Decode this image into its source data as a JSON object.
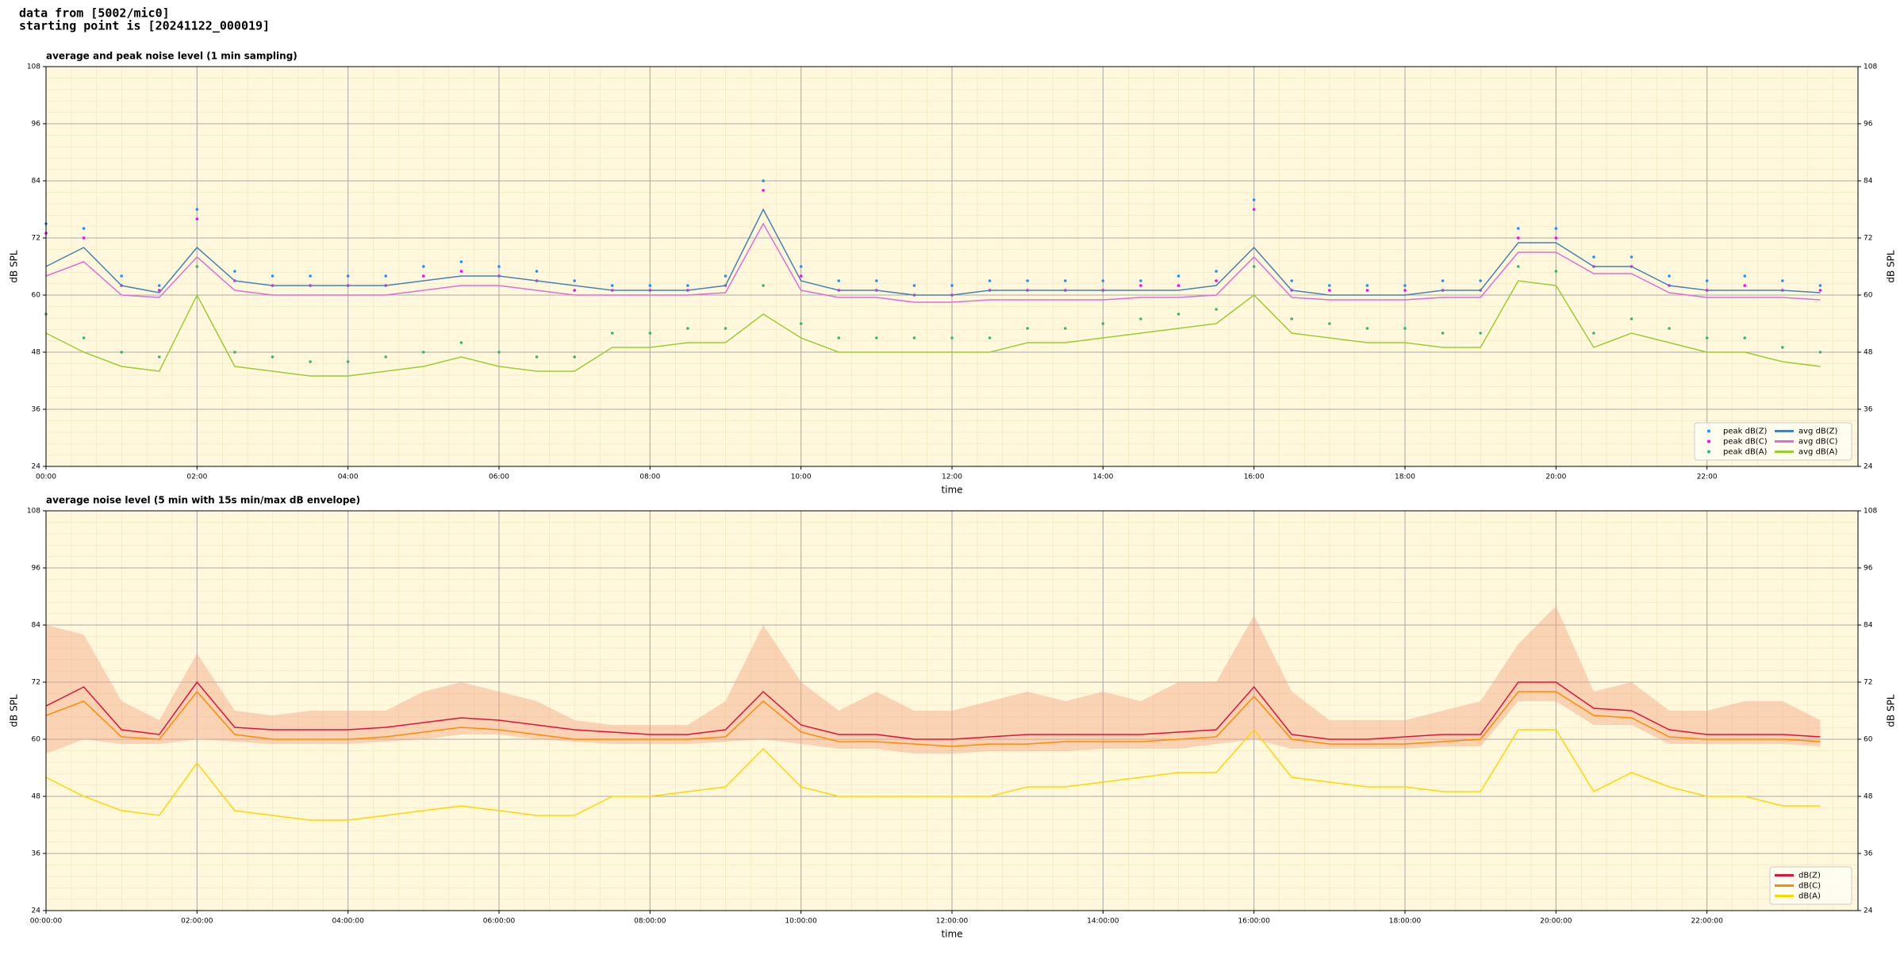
{
  "header": {
    "line1": "data from [5002/mic0]",
    "line2": "starting point is [20241122_000019]"
  },
  "chart_data": [
    {
      "type": "line",
      "title": "average and peak noise level (1 min sampling)",
      "xlabel": "time",
      "ylabel": "dB SPL",
      "xlim": [
        0,
        24
      ],
      "ylim": [
        24,
        108
      ],
      "xticks": [
        {
          "value": 0,
          "label": "00:00"
        },
        {
          "value": 2,
          "label": "02:00"
        },
        {
          "value": 4,
          "label": "04:00"
        },
        {
          "value": 6,
          "label": "06:00"
        },
        {
          "value": 8,
          "label": "08:00"
        },
        {
          "value": 10,
          "label": "10:00"
        },
        {
          "value": 12,
          "label": "12:00"
        },
        {
          "value": 14,
          "label": "14:00"
        },
        {
          "value": 16,
          "label": "16:00"
        },
        {
          "value": 18,
          "label": "18:00"
        },
        {
          "value": 20,
          "label": "20:00"
        },
        {
          "value": 22,
          "label": "22:00"
        }
      ],
      "yticks": [
        24,
        36,
        48,
        60,
        72,
        84,
        96,
        108
      ],
      "grid": true,
      "legend": "lower right",
      "legend_columns": 2,
      "x": [
        0,
        0.5,
        1,
        1.5,
        2,
        2.5,
        3,
        3.5,
        4,
        4.5,
        5,
        5.5,
        6,
        6.5,
        7,
        7.5,
        8,
        8.5,
        9,
        9.5,
        10,
        10.5,
        11,
        11.5,
        12,
        12.5,
        13,
        13.5,
        14,
        14.5,
        15,
        15.5,
        16,
        16.5,
        17,
        17.5,
        18,
        18.5,
        19,
        19.5,
        20,
        20.5,
        21,
        21.5,
        22,
        22.5,
        23,
        23.5
      ],
      "series": [
        {
          "name": "peak dB(Z)",
          "style": "scatter",
          "color": "#1e90ff",
          "values": [
            75,
            74,
            64,
            62,
            78,
            65,
            64,
            64,
            64,
            64,
            66,
            67,
            66,
            65,
            63,
            62,
            62,
            62,
            64,
            84,
            66,
            63,
            63,
            62,
            62,
            63,
            63,
            63,
            63,
            63,
            64,
            65,
            80,
            63,
            62,
            62,
            62,
            63,
            63,
            74,
            74,
            68,
            68,
            64,
            63,
            64,
            63,
            62
          ]
        },
        {
          "name": "peak dB(C)",
          "style": "scatter",
          "color": "#ff00ff",
          "values": [
            73,
            72,
            62,
            61,
            76,
            63,
            62,
            62,
            62,
            62,
            64,
            65,
            64,
            63,
            61,
            61,
            61,
            61,
            62,
            82,
            64,
            61,
            61,
            60,
            60,
            61,
            61,
            61,
            61,
            62,
            62,
            63,
            78,
            61,
            61,
            61,
            61,
            61,
            61,
            72,
            72,
            66,
            66,
            62,
            61,
            62,
            61,
            61
          ]
        },
        {
          "name": "peak dB(A)",
          "style": "scatter",
          "color": "#3cb371",
          "values": [
            56,
            51,
            48,
            47,
            66,
            48,
            47,
            46,
            46,
            47,
            48,
            50,
            48,
            47,
            47,
            52,
            52,
            53,
            53,
            62,
            54,
            51,
            51,
            51,
            51,
            51,
            53,
            53,
            54,
            55,
            56,
            57,
            66,
            55,
            54,
            53,
            53,
            52,
            52,
            66,
            65,
            52,
            55,
            53,
            51,
            51,
            49,
            48
          ]
        },
        {
          "name": "avg dB(Z)",
          "style": "line",
          "color": "#4682b4",
          "values": [
            66,
            70,
            62,
            60.5,
            70,
            63,
            62,
            62,
            62,
            62,
            63,
            64,
            64,
            63,
            62,
            61,
            61,
            61,
            62,
            78,
            63,
            61,
            61,
            60,
            60,
            61,
            61,
            61,
            61,
            61,
            61,
            62,
            70,
            61,
            60,
            60,
            60,
            61,
            61,
            71,
            71,
            66,
            66,
            62,
            61,
            61,
            61,
            60.5
          ]
        },
        {
          "name": "avg dB(C)",
          "style": "line",
          "color": "#da70d6",
          "values": [
            64,
            67,
            60,
            59.5,
            68,
            61,
            60,
            60,
            60,
            60,
            61,
            62,
            62,
            61,
            60,
            60,
            60,
            60,
            60.5,
            75,
            61,
            59.5,
            59.5,
            58.5,
            58.5,
            59,
            59,
            59,
            59,
            59.5,
            59.5,
            60,
            68,
            59.5,
            59,
            59,
            59,
            59.5,
            59.5,
            69,
            69,
            64.5,
            64.5,
            60.5,
            59.5,
            59.5,
            59.5,
            59
          ]
        },
        {
          "name": "avg dB(A)",
          "style": "line",
          "color": "#9acd32",
          "values": [
            52,
            48,
            45,
            44,
            60,
            45,
            44,
            43,
            43,
            44,
            45,
            47,
            45,
            44,
            44,
            49,
            49,
            50,
            50,
            56,
            51,
            48,
            48,
            48,
            48,
            48,
            50,
            50,
            51,
            52,
            53,
            54,
            60,
            52,
            51,
            50,
            50,
            49,
            49,
            63,
            62,
            49,
            52,
            50,
            48,
            48,
            46,
            45
          ]
        }
      ]
    },
    {
      "type": "line",
      "title": "average noise level (5 min with 15s min/max dB envelope)",
      "xlabel": "time",
      "ylabel": "dB SPL",
      "xlim": [
        0,
        24
      ],
      "ylim": [
        24,
        108
      ],
      "xticks": [
        {
          "value": 0,
          "label": "00:00:00"
        },
        {
          "value": 2,
          "label": "02:00:00"
        },
        {
          "value": 4,
          "label": "04:00:00"
        },
        {
          "value": 6,
          "label": "06:00:00"
        },
        {
          "value": 8,
          "label": "08:00:00"
        },
        {
          "value": 10,
          "label": "10:00:00"
        },
        {
          "value": 12,
          "label": "12:00:00"
        },
        {
          "value": 14,
          "label": "14:00:00"
        },
        {
          "value": 16,
          "label": "16:00:00"
        },
        {
          "value": 18,
          "label": "18:00:00"
        },
        {
          "value": 20,
          "label": "20:00:00"
        },
        {
          "value": 22,
          "label": "22:00:00"
        }
      ],
      "yticks": [
        24,
        36,
        48,
        60,
        72,
        84,
        96,
        108
      ],
      "grid": true,
      "legend": "lower right",
      "legend_columns": 1,
      "x": [
        0,
        0.5,
        1,
        1.5,
        2,
        2.5,
        3,
        3.5,
        4,
        4.5,
        5,
        5.5,
        6,
        6.5,
        7,
        7.5,
        8,
        8.5,
        9,
        9.5,
        10,
        10.5,
        11,
        11.5,
        12,
        12.5,
        13,
        13.5,
        14,
        14.5,
        15,
        15.5,
        16,
        16.5,
        17,
        17.5,
        18,
        18.5,
        19,
        19.5,
        20,
        20.5,
        21,
        21.5,
        22,
        22.5,
        23,
        23.5
      ],
      "envelope": {
        "color": "#f4a582",
        "max": [
          84,
          82,
          68,
          64,
          78,
          66,
          65,
          66,
          66,
          66,
          70,
          72,
          70,
          68,
          64,
          63,
          63,
          63,
          68,
          84,
          72,
          66,
          70,
          66,
          66,
          68,
          70,
          68,
          70,
          68,
          72,
          72,
          86,
          70,
          64,
          64,
          64,
          66,
          68,
          80,
          88,
          70,
          72,
          66,
          66,
          68,
          68,
          64
        ],
        "min": [
          57,
          60,
          59,
          59,
          60,
          59.5,
          59,
          59,
          59,
          59.5,
          60,
          61,
          61,
          60,
          59.5,
          59,
          59,
          59,
          59.5,
          60,
          59,
          58,
          58,
          57,
          57,
          57.5,
          57.5,
          57.5,
          58,
          58,
          58,
          59,
          60,
          58,
          58,
          58,
          58,
          58.5,
          58.5,
          68,
          68,
          63,
          63,
          59,
          59,
          59,
          59,
          58.5
        ]
      },
      "series": [
        {
          "name": "dB(Z)",
          "style": "line",
          "color": "#dc143c",
          "values": [
            67,
            71,
            62,
            61,
            72,
            62.5,
            62,
            62,
            62,
            62.5,
            63.5,
            64.5,
            64,
            63,
            62,
            61.5,
            61,
            61,
            62,
            70,
            63,
            61,
            61,
            60,
            60,
            60.5,
            61,
            61,
            61,
            61,
            61.5,
            62,
            71,
            61,
            60,
            60,
            60.5,
            61,
            61,
            72,
            72,
            66.5,
            66,
            62,
            61,
            61,
            61,
            60.5
          ]
        },
        {
          "name": "dB(C)",
          "style": "line",
          "color": "#ff8c00",
          "values": [
            65,
            68,
            60.5,
            60,
            70,
            61,
            60,
            60,
            60,
            60.5,
            61.5,
            62.5,
            62,
            61,
            60,
            60,
            60,
            60,
            60.5,
            68,
            61.5,
            59.5,
            59.5,
            59,
            58.5,
            59,
            59,
            59.5,
            59.5,
            59.5,
            60,
            60.5,
            69,
            60,
            59,
            59,
            59,
            59.5,
            60,
            70,
            70,
            65,
            64.5,
            60.5,
            60,
            60,
            60,
            59.5
          ]
        },
        {
          "name": "dB(A)",
          "style": "line",
          "color": "#ffd700",
          "values": [
            52,
            48,
            45,
            44,
            55,
            45,
            44,
            43,
            43,
            44,
            45,
            46,
            45,
            44,
            44,
            48,
            48,
            49,
            50,
            58,
            50,
            48,
            48,
            48,
            48,
            48,
            50,
            50,
            51,
            52,
            53,
            53,
            62,
            52,
            51,
            50,
            50,
            49,
            49,
            62,
            62,
            49,
            53,
            50,
            48,
            48,
            46,
            46
          ]
        }
      ]
    }
  ]
}
